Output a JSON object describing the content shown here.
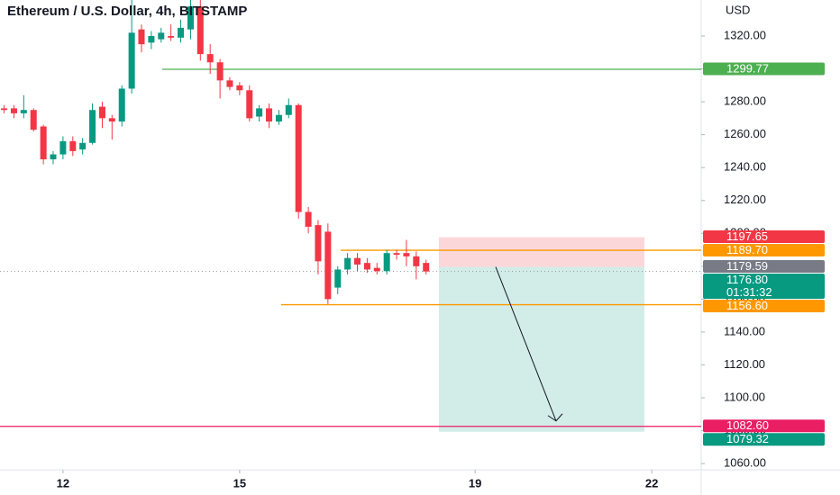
{
  "chart_data": {
    "type": "candlestick",
    "title": "Ethereum / U.S. Dollar, 4h, BITSTAMP",
    "currency": "USD",
    "up_color": "#089981",
    "down_color": "#f23645",
    "x": [
      11,
      11.167,
      11.333,
      11.5,
      11.667,
      11.833,
      12,
      12.167,
      12.333,
      12.5,
      12.667,
      12.833,
      13,
      13.167,
      13.333,
      13.5,
      13.667,
      13.833,
      14,
      14.167,
      14.333,
      14.5,
      14.667,
      14.833,
      15,
      15.167,
      15.333,
      15.5,
      15.667,
      15.833,
      16,
      16.167,
      16.333,
      16.5,
      16.667,
      16.833,
      17,
      17.167,
      17.333,
      17.5,
      17.667,
      17.833,
      18,
      18.167
    ],
    "open": [
      1276,
      1276,
      1273,
      1275,
      1265,
      1245,
      1248,
      1256,
      1251,
      1255,
      1277,
      1270,
      1268,
      1288,
      1324,
      1316,
      1318,
      1320,
      1319,
      1324,
      1338,
      1309,
      1304,
      1293,
      1290,
      1287,
      1271,
      1276,
      1268,
      1272,
      1278,
      1213,
      1205,
      1201,
      1167,
      1178,
      1185,
      1182,
      1179,
      1177,
      1188,
      1188,
      1186,
      1182
    ],
    "high": [
      1278,
      1278,
      1284,
      1276,
      1266,
      1250,
      1259,
      1259,
      1258,
      1279,
      1280,
      1272,
      1290,
      1342,
      1327,
      1323,
      1325,
      1327,
      1330,
      1345,
      1342,
      1315,
      1306,
      1295,
      1292,
      1290,
      1278,
      1279,
      1275,
      1282,
      1279,
      1216,
      1208,
      1206,
      1180,
      1188,
      1188,
      1185,
      1182,
      1190,
      1190,
      1196,
      1189,
      1184
    ],
    "low": [
      1273,
      1270,
      1270,
      1262,
      1242,
      1242,
      1245,
      1247,
      1248,
      1254,
      1264,
      1257,
      1265,
      1285,
      1310,
      1312,
      1316,
      1317,
      1316,
      1318,
      1305,
      1297,
      1282,
      1287,
      1284,
      1268,
      1268,
      1264,
      1266,
      1270,
      1209,
      1200,
      1175,
      1157,
      1163,
      1175,
      1177,
      1176,
      1175,
      1175,
      1184,
      1180,
      1172,
      1175
    ],
    "close": [
      1275,
      1273,
      1275,
      1263,
      1245,
      1248,
      1256,
      1250,
      1255,
      1275,
      1270,
      1268,
      1288,
      1322,
      1315,
      1320,
      1322,
      1319,
      1325,
      1338,
      1309,
      1304,
      1293,
      1289,
      1287,
      1270,
      1276,
      1268,
      1272,
      1278,
      1213,
      1204,
      1183,
      1160,
      1178,
      1185,
      1181,
      1178,
      1177,
      1188,
      1187,
      1186,
      1180,
      1176.8
    ],
    "xlim": [
      10.93,
      22.84
    ],
    "xticks": [
      12,
      15,
      19,
      22
    ],
    "ylim": [
      1056.2,
      1341.9
    ],
    "yticks": [
      {
        "value": 1060,
        "label": "1060.00"
      },
      {
        "value": 1080,
        "label": "1080.00"
      },
      {
        "value": 1100,
        "label": "1100.00"
      },
      {
        "value": 1120,
        "label": "1120.00"
      },
      {
        "value": 1140,
        "label": "1140.00"
      },
      {
        "value": 1160,
        "label": "1160.00"
      },
      {
        "value": 1180,
        "label": "1180.00"
      },
      {
        "value": 1200,
        "label": "1200.00"
      },
      {
        "value": 1220,
        "label": "1220.00"
      },
      {
        "value": 1240,
        "label": "1240.00"
      },
      {
        "value": 1260,
        "label": "1260.00"
      },
      {
        "value": 1280,
        "label": "1280.00"
      },
      {
        "value": 1300,
        "label": "1300.00"
      },
      {
        "value": 1320,
        "label": "1320.00"
      }
    ],
    "price_lines": [
      {
        "value": 1299.77,
        "from": 13.685,
        "color": "#4caf50"
      },
      {
        "value": {
          "value": 1189.7,
          "label": "1189.70"
        },
        "from": 16.717,
        "color": "#ff9800"
      },
      {
        "value": {
          "value": 1156.6,
          "label": "1156.60"
        },
        "from": 15.706,
        "color": "#ff9800"
      },
      {
        "value": {
          "value": 1082.6,
          "label": "1082.60"
        },
        "from": 10.93,
        "color": "#e91e63"
      }
    ],
    "current_price": {
      "value": {
        "value": 1176.8,
        "label": "1176.80"
      },
      "countdown": "01:31:32",
      "color": "#089981",
      "line_color": "#9598a1"
    },
    "position": {
      "start": 18.385,
      "end": 21.876,
      "stop": {
        "value": 1197.65,
        "label": "1197.65"
      },
      "entry": {
        "value": 1179.59,
        "label": "1179.59"
      },
      "target": {
        "value": 1079.32,
        "label": "1079.32"
      },
      "stop_color": "#f23645",
      "entry_color": "#787b86",
      "target_color": "#089981"
    }
  }
}
